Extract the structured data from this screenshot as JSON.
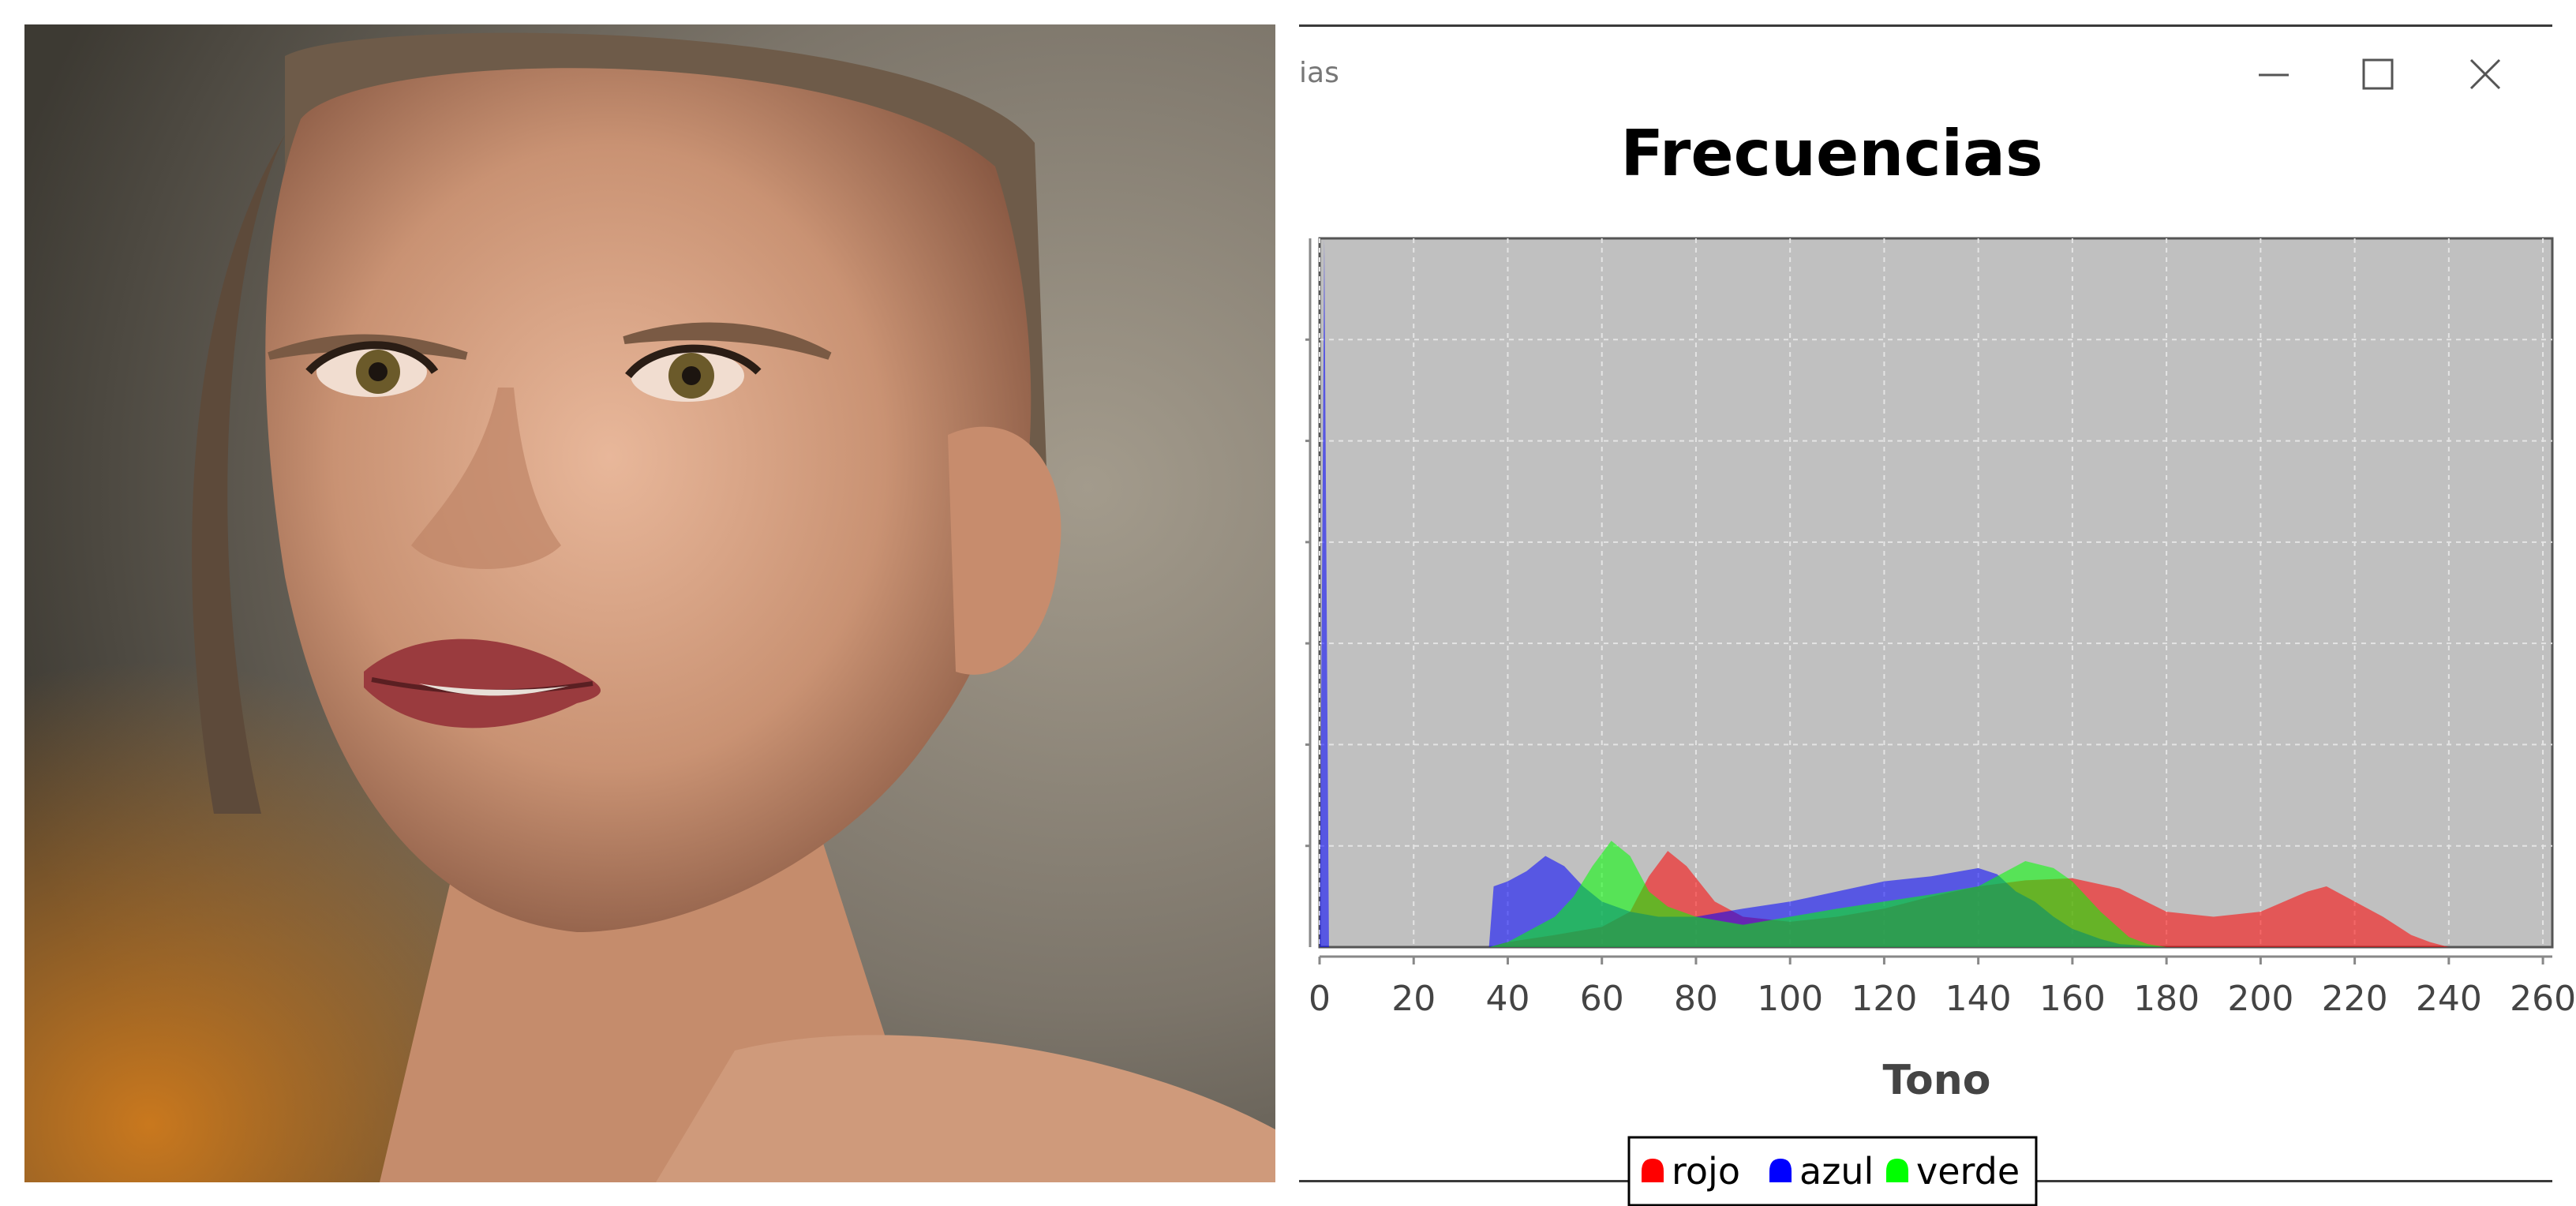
{
  "window": {
    "title": "ias",
    "controls": {
      "minimize": "minimize-icon",
      "maximize": "maximize-icon",
      "close": "close-icon"
    }
  },
  "photo": {
    "kind": "portrait photograph"
  },
  "colors": {
    "plot_background": "#c0c0c0",
    "red": "#ff0000",
    "blue": "#0000ff",
    "green": "#00ff00"
  },
  "chart_data": {
    "type": "area",
    "title": "Frecuencias",
    "xlabel": "Tono",
    "ylabel": "",
    "xlim": [
      0,
      262
    ],
    "ylim": [
      0,
      7
    ],
    "x_ticks": [
      "0",
      "20",
      "40",
      "60",
      "80",
      "100",
      "120",
      "140",
      "160",
      "180",
      "200",
      "220",
      "240",
      "260"
    ],
    "grid": true,
    "legend_position": "bottom-center",
    "series": [
      {
        "name": "rojo",
        "color": "#ff0000",
        "x": [
          0,
          36,
          40,
          50,
          60,
          66,
          70,
          74,
          78,
          84,
          90,
          100,
          110,
          120,
          130,
          140,
          150,
          160,
          170,
          180,
          190,
          200,
          210,
          214,
          220,
          226,
          232,
          236,
          240,
          255
        ],
        "y": [
          0,
          0,
          0.05,
          0.12,
          0.2,
          0.35,
          0.7,
          0.95,
          0.8,
          0.45,
          0.3,
          0.25,
          0.3,
          0.38,
          0.5,
          0.6,
          0.66,
          0.68,
          0.58,
          0.35,
          0.3,
          0.35,
          0.55,
          0.6,
          0.45,
          0.3,
          0.12,
          0.05,
          0,
          0
        ]
      },
      {
        "name": "azul",
        "color": "#0000ff",
        "x": [
          0,
          1,
          2,
          36,
          37,
          40,
          44,
          48,
          52,
          56,
          60,
          66,
          72,
          80,
          90,
          100,
          110,
          120,
          130,
          140,
          144,
          148,
          152,
          156,
          160,
          166,
          170,
          180
        ],
        "y": [
          0,
          7,
          0,
          0,
          0.6,
          0.65,
          0.75,
          0.9,
          0.8,
          0.6,
          0.45,
          0.35,
          0.3,
          0.3,
          0.38,
          0.45,
          0.55,
          0.65,
          0.7,
          0.78,
          0.72,
          0.55,
          0.45,
          0.3,
          0.18,
          0.08,
          0.03,
          0
        ]
      },
      {
        "name": "verde",
        "color": "#00ff00",
        "x": [
          0,
          36,
          40,
          50,
          54,
          58,
          62,
          66,
          70,
          74,
          80,
          90,
          100,
          110,
          120,
          130,
          140,
          146,
          150,
          156,
          160,
          166,
          172,
          176,
          180
        ],
        "y": [
          0,
          0,
          0.05,
          0.3,
          0.5,
          0.8,
          1.05,
          0.9,
          0.55,
          0.4,
          0.3,
          0.22,
          0.3,
          0.38,
          0.45,
          0.52,
          0.6,
          0.75,
          0.85,
          0.78,
          0.65,
          0.35,
          0.1,
          0.03,
          0
        ]
      }
    ]
  }
}
